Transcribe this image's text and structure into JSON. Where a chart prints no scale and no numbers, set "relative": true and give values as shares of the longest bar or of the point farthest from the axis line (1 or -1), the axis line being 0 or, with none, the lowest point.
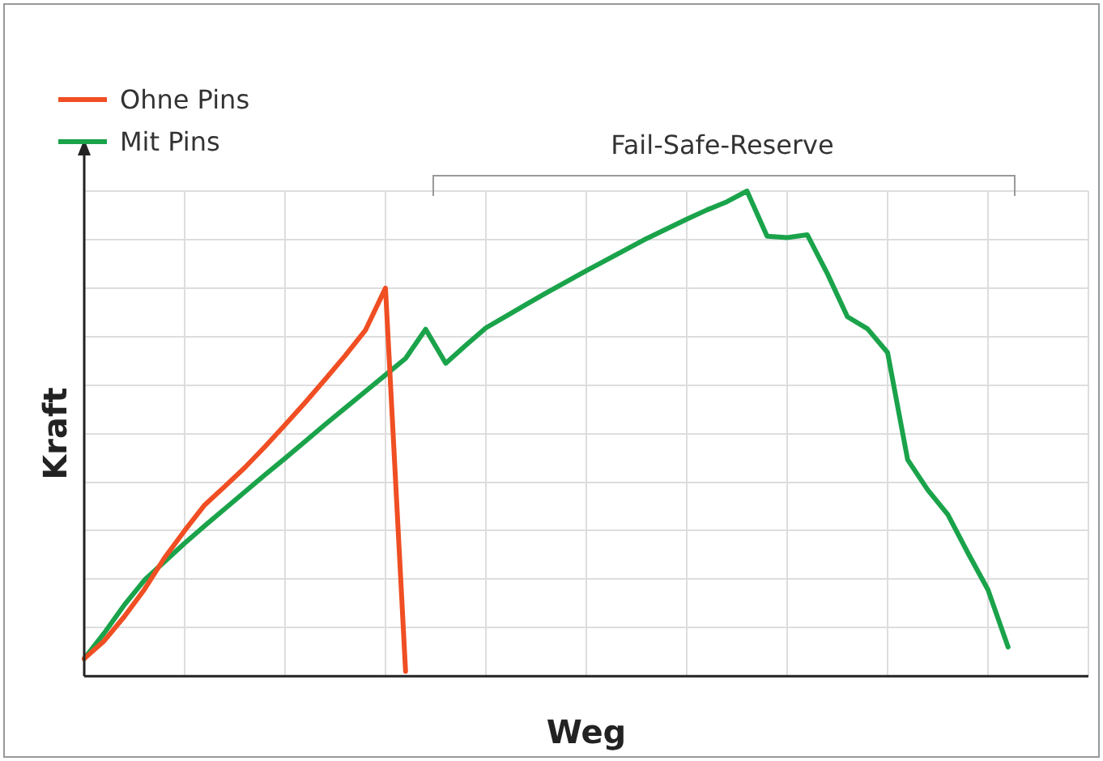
{
  "chart_data": {
    "type": "line",
    "relative": true,
    "xlabel": "Weg",
    "ylabel": "Kraft",
    "categories": [
      null,
      null,
      null,
      null,
      null,
      null,
      null,
      null,
      null,
      null,
      null,
      null,
      null,
      null,
      null,
      null,
      null,
      null,
      null,
      null,
      null,
      null,
      null,
      null,
      null,
      null,
      null,
      null,
      null,
      null,
      null,
      null,
      null,
      null,
      null,
      null,
      null,
      null,
      null,
      null,
      null,
      null,
      null,
      null,
      null,
      null,
      null,
      null,
      null,
      null,
      null
    ],
    "grid": true,
    "legend": "top left",
    "marker": "none",
    "line_style": "solid",
    "annotations": [
      "Fail-Safe-Reserve"
    ],
    "series": [
      {
        "name": "Ohne Pins",
        "color": "#f04e23",
        "values": [
          0.036,
          0.073,
          0.123,
          0.179,
          0.244,
          0.3,
          0.353,
          0.391,
          0.43,
          0.473,
          0.518,
          0.564,
          0.612,
          0.661,
          0.713,
          0.8,
          0.01,
          null,
          null,
          null,
          null,
          null,
          null,
          null,
          null,
          null,
          null,
          null,
          null,
          null,
          null,
          null,
          null,
          null,
          null,
          null,
          null,
          null,
          null,
          null,
          null,
          null,
          null,
          null,
          null,
          null,
          null,
          null,
          null,
          null,
          null
        ]
      },
      {
        "name": "Mit Pins",
        "color": "#1aa34a",
        "values": [
          0.036,
          0.089,
          0.147,
          0.198,
          0.236,
          0.274,
          0.31,
          0.345,
          0.38,
          0.415,
          0.449,
          0.484,
          0.519,
          0.553,
          0.587,
          0.621,
          0.655,
          0.715,
          0.645,
          0.682,
          0.718,
          0.742,
          0.766,
          0.79,
          0.813,
          0.836,
          0.858,
          0.88,
          0.902,
          0.922,
          0.942,
          0.961,
          0.978,
          1,
          0.907,
          0.904,
          0.91,
          0.83,
          0.741,
          0.716,
          0.667,
          0.446,
          0.384,
          0.333,
          0.254,
          0.178,
          0.06,
          null,
          null,
          null,
          null
        ]
      }
    ]
  }
}
